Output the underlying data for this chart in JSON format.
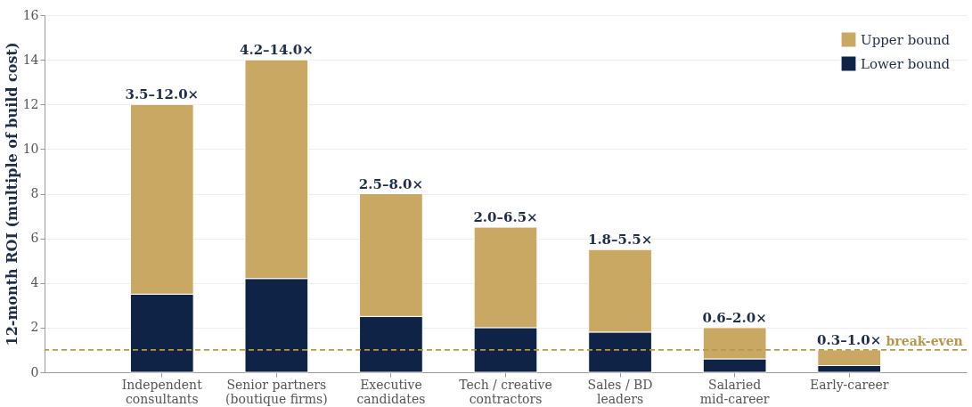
{
  "chart_data": {
    "type": "bar",
    "stacked": true,
    "ylabel": "12-month ROI (multiple of build cost)",
    "categories": [
      "Independent\nconsultants",
      "Senior partners\n(boutique firms)",
      "Executive\ncandidates",
      "Tech / creative\ncontractors",
      "Sales / BD\nleaders",
      "Salaried\nmid-career",
      "Early-career"
    ],
    "series": [
      {
        "name": "Lower bound",
        "color": "#0f2347",
        "values": [
          3.5,
          4.2,
          2.5,
          2.0,
          1.8,
          0.6,
          0.3
        ]
      },
      {
        "name": "Upper bound",
        "color": "#c8a862",
        "values": [
          8.5,
          9.8,
          5.5,
          4.5,
          3.7,
          1.4,
          0.7
        ]
      }
    ],
    "totals": [
      "3.5–12.0×",
      "4.2–14.0×",
      "2.5–8.0×",
      "2.0–6.5×",
      "1.8–5.5×",
      "0.6–2.0×",
      "0.3–1.0×"
    ],
    "ylim": [
      0,
      16
    ],
    "yticks": [
      0,
      2,
      4,
      6,
      8,
      10,
      12,
      14,
      16
    ],
    "grid": "y",
    "legend": "top right",
    "ref_lines": [
      {
        "axis": "y",
        "value": 1,
        "label": "break-even",
        "color": "#b8964a",
        "line_style": "dashed"
      }
    ]
  }
}
